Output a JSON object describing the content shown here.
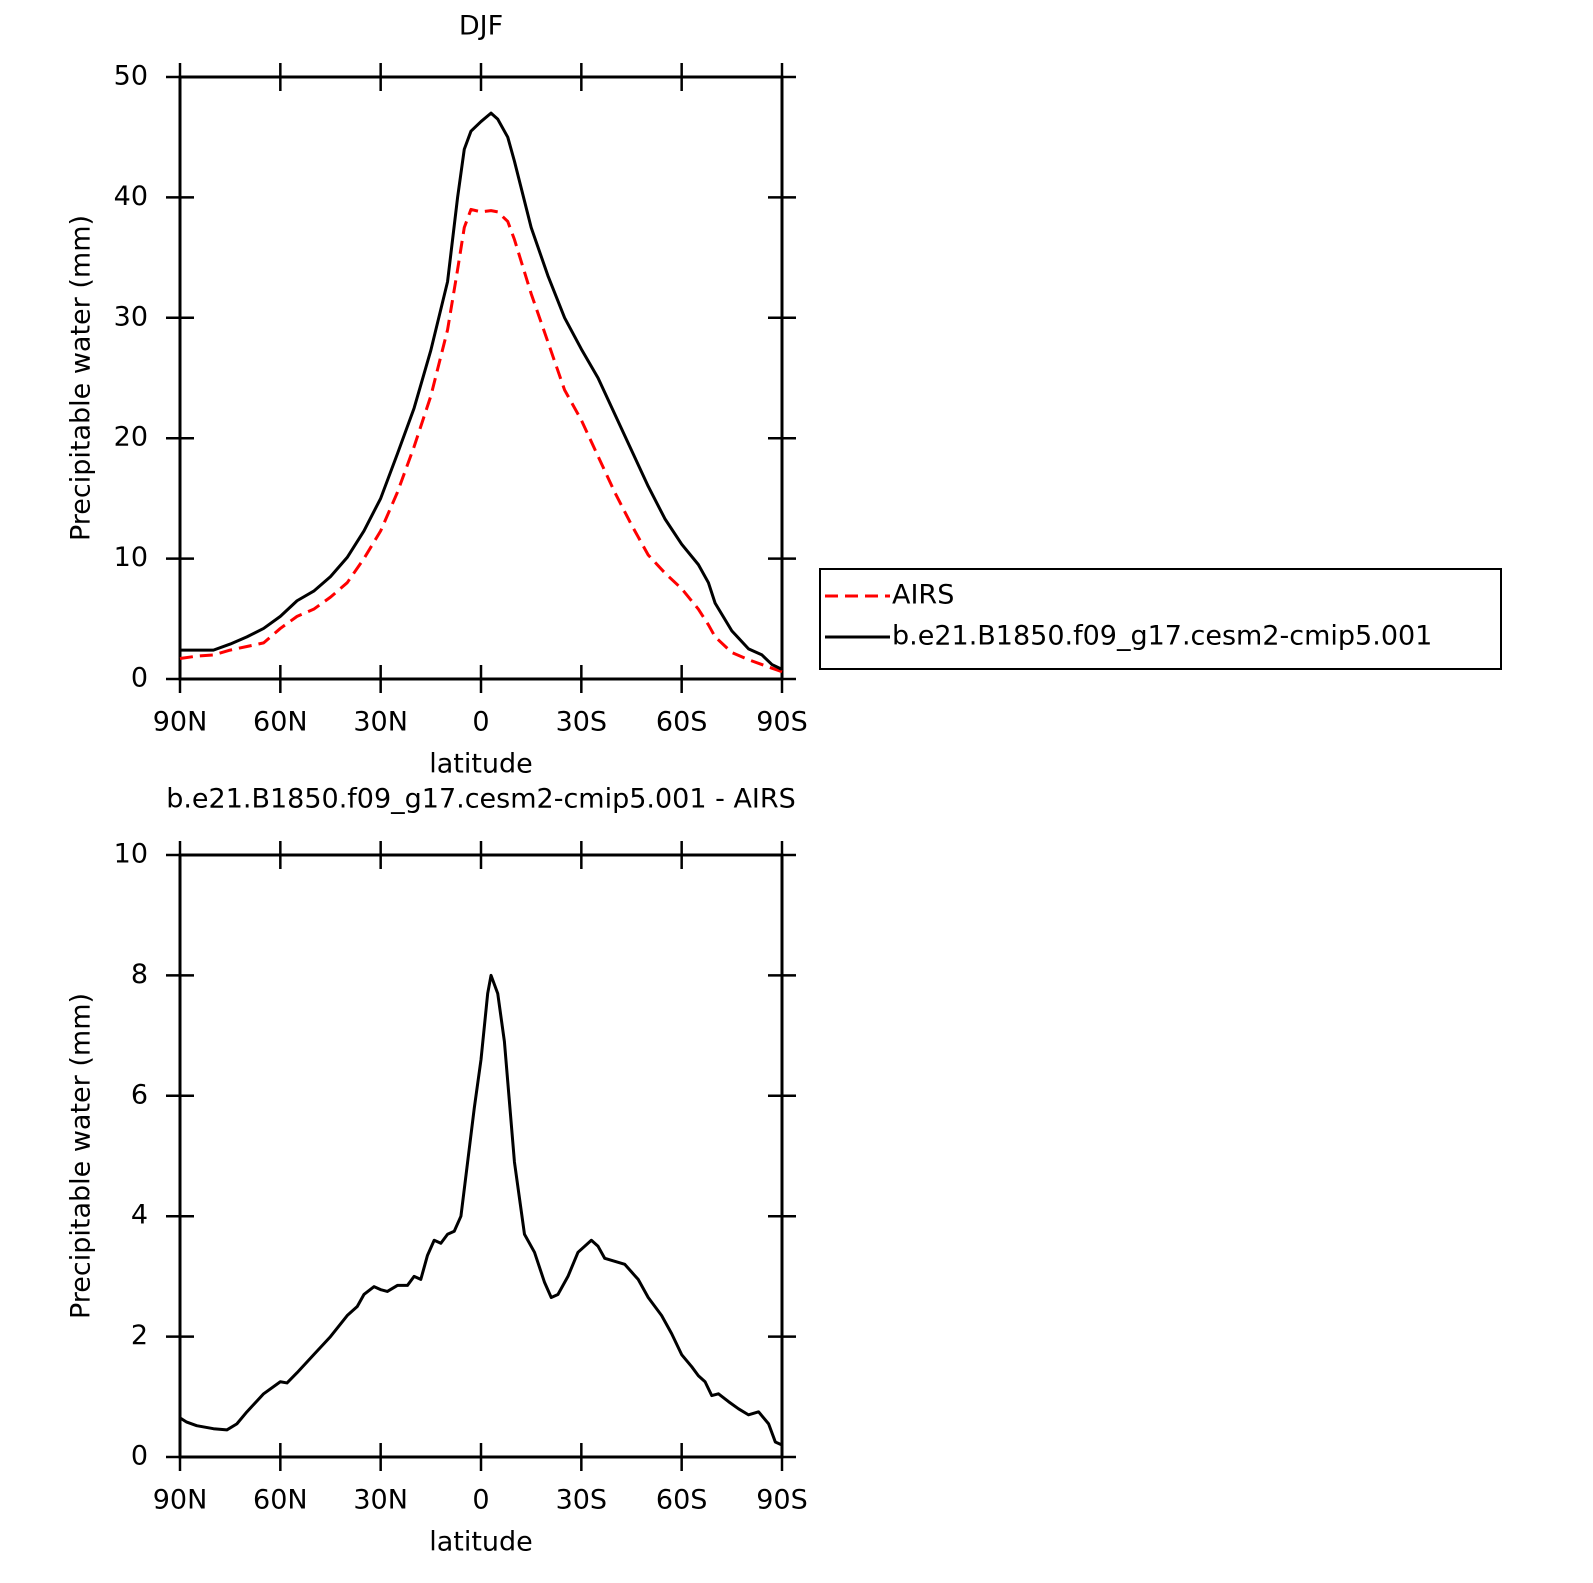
{
  "chart_data": [
    {
      "type": "line",
      "title": "DJF",
      "ylabel": "Precipitable water (mm)",
      "xlabel": "latitude",
      "x": [
        90,
        85,
        80,
        75,
        70,
        65,
        60,
        55,
        50,
        45,
        40,
        35,
        30,
        25,
        20,
        15,
        10,
        7,
        5,
        3,
        0,
        -3,
        -5,
        -8,
        -10,
        -15,
        -20,
        -25,
        -30,
        -35,
        -40,
        -45,
        -50,
        -55,
        -60,
        -65,
        -68,
        -70,
        -75,
        -80,
        -84,
        -87,
        -90
      ],
      "series": [
        {
          "name": "AIRS",
          "color": "#ff0000",
          "line_style": "dashed",
          "values": [
            1.7,
            1.9,
            2.0,
            2.4,
            2.7,
            3.0,
            4.2,
            5.2,
            5.8,
            6.8,
            8.0,
            10.0,
            12.3,
            15.5,
            19.3,
            23.5,
            29,
            34,
            37.5,
            39,
            38.8,
            38.9,
            38.8,
            38,
            36.5,
            32,
            28,
            24,
            21.5,
            18.5,
            15.5,
            12.8,
            10.3,
            8.8,
            7.5,
            5.8,
            4.5,
            3.5,
            2.2,
            1.6,
            1.2,
            0.9,
            0.6
          ]
        },
        {
          "name": "b.e21.B1850.f09_g17.cesm2-cmip5.001",
          "color": "#000000",
          "line_style": "solid",
          "values": [
            2.4,
            2.4,
            2.4,
            2.9,
            3.5,
            4.2,
            5.2,
            6.5,
            7.3,
            8.5,
            10.1,
            12.3,
            15.0,
            18.7,
            22.5,
            27.3,
            33,
            40,
            44,
            45.5,
            46.3,
            47,
            46.5,
            45,
            43,
            37.5,
            33.5,
            30,
            27.4,
            25,
            22,
            19,
            16,
            13.3,
            11.2,
            9.5,
            8,
            6.3,
            4,
            2.5,
            2,
            1.2,
            0.8
          ]
        }
      ],
      "xlim": [
        90,
        -90
      ],
      "xticks": [
        {
          "value": 90,
          "label": "90N"
        },
        {
          "value": 60,
          "label": "60N"
        },
        {
          "value": 30,
          "label": "30N"
        },
        0,
        {
          "value": -30,
          "label": "30S"
        },
        {
          "value": -60,
          "label": "60S"
        },
        {
          "value": -90,
          "label": "90S"
        }
      ],
      "ylim": [
        0,
        50
      ],
      "yticks": [
        0,
        10,
        20,
        30,
        40,
        50
      ],
      "legend": "right"
    },
    {
      "type": "line",
      "title": "b.e21.B1850.f09_g17.cesm2-cmip5.001 - AIRS",
      "ylabel": "Precipitable water (mm)",
      "xlabel": "latitude",
      "x": [
        90,
        88,
        85,
        80,
        76,
        73,
        70,
        65,
        60,
        58,
        55,
        50,
        45,
        40,
        37,
        35,
        32,
        30,
        28,
        25,
        22,
        20,
        18,
        16,
        14,
        12,
        10,
        8,
        6,
        4,
        2,
        0,
        -2,
        -3,
        -5,
        -7,
        -10,
        -13,
        -16,
        -19,
        -21,
        -23,
        -26,
        -29,
        -33,
        -35,
        -37,
        -40,
        -43,
        -47,
        -50,
        -54,
        -57,
        -60,
        -63,
        -65,
        -67,
        -69,
        -71,
        -74,
        -77,
        -80,
        -83,
        -86,
        -88,
        -90
      ],
      "color": "#000000",
      "values": [
        0.65,
        0.58,
        0.52,
        0.47,
        0.45,
        0.55,
        0.75,
        1.05,
        1.25,
        1.23,
        1.4,
        1.7,
        2.0,
        2.35,
        2.5,
        2.7,
        2.83,
        2.78,
        2.75,
        2.85,
        2.85,
        3.0,
        2.95,
        3.35,
        3.6,
        3.55,
        3.7,
        3.75,
        4.0,
        4.9,
        5.8,
        6.6,
        7.7,
        8.0,
        7.7,
        6.9,
        4.9,
        3.7,
        3.4,
        2.9,
        2.65,
        2.7,
        3.0,
        3.4,
        3.6,
        3.5,
        3.3,
        3.25,
        3.2,
        2.95,
        2.65,
        2.35,
        2.05,
        1.7,
        1.5,
        1.35,
        1.25,
        1.02,
        1.05,
        0.92,
        0.8,
        0.7,
        0.75,
        0.55,
        0.25,
        0.2
      ],
      "xlim": [
        90,
        -90
      ],
      "xticks": [
        {
          "value": 90,
          "label": "90N"
        },
        {
          "value": 60,
          "label": "60N"
        },
        {
          "value": 30,
          "label": "30N"
        },
        0,
        {
          "value": -30,
          "label": "30S"
        },
        {
          "value": -60,
          "label": "60S"
        },
        {
          "value": -90,
          "label": "90S"
        }
      ],
      "ylim": [
        0,
        10
      ],
      "yticks": [
        0,
        2,
        4,
        6,
        8,
        10
      ]
    }
  ]
}
